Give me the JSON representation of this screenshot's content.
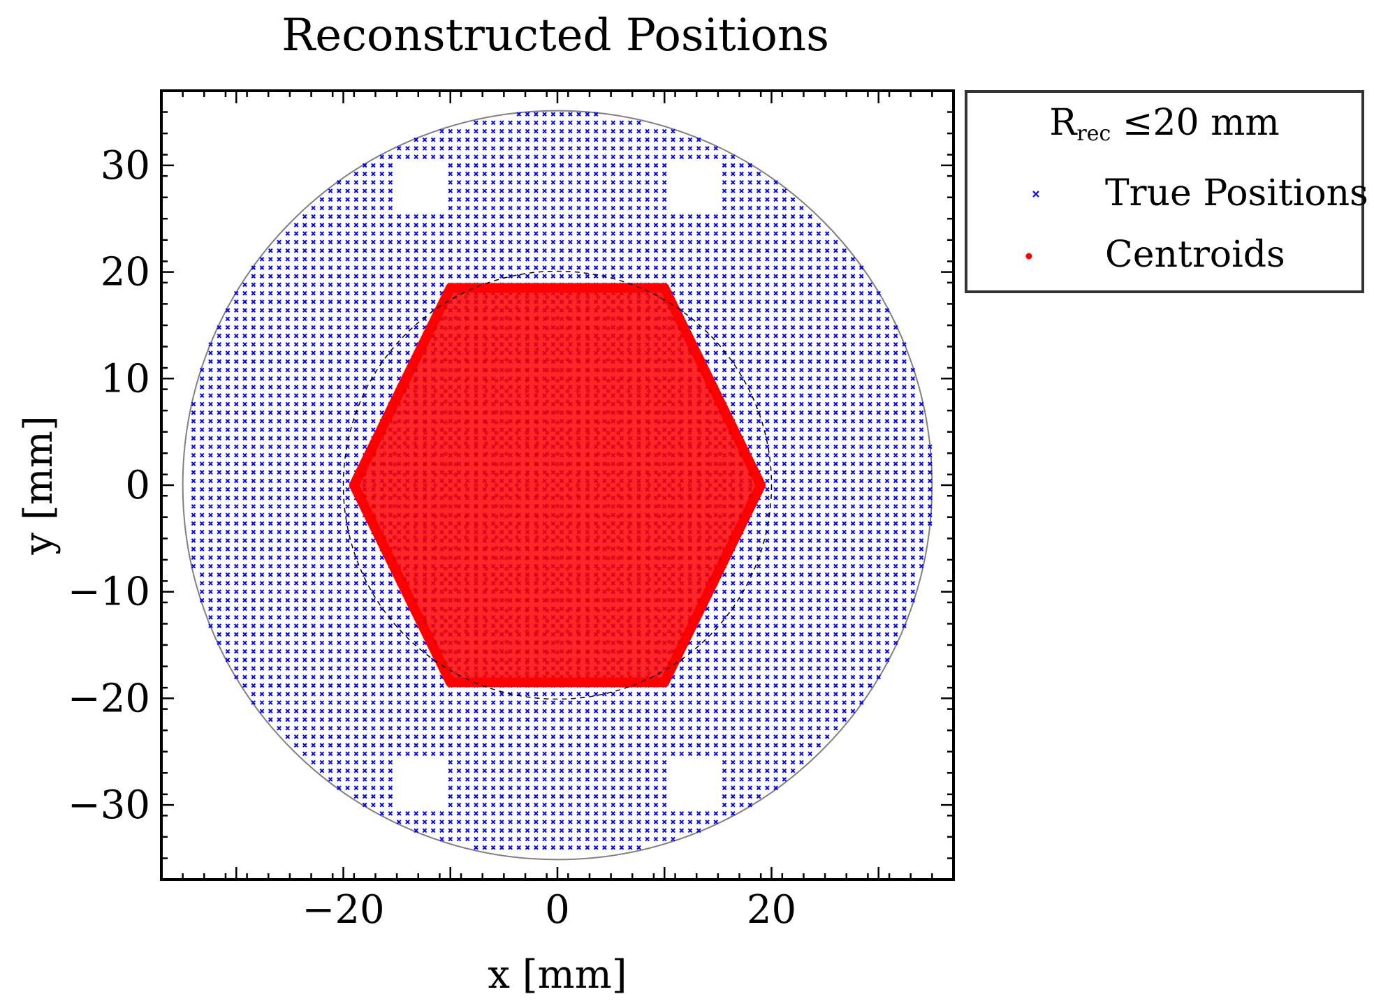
{
  "chart_data": {
    "type": "scatter",
    "title": "Reconstructed Positions",
    "xlabel": "x [mm]",
    "ylabel": "y [mm]",
    "xlim": [
      -37,
      37
    ],
    "ylim": [
      -37,
      37
    ],
    "xticks": [
      {
        "value": -20,
        "label": "−20"
      },
      {
        "value": 0,
        "label": "0"
      },
      {
        "value": 20,
        "label": "20"
      }
    ],
    "yticks": [
      {
        "value": 30,
        "label": "30"
      },
      {
        "value": 20,
        "label": "20"
      },
      {
        "value": 10,
        "label": "10"
      },
      {
        "value": 0,
        "label": "0"
      },
      {
        "value": -10,
        "label": "−10"
      },
      {
        "value": -20,
        "label": "−20"
      },
      {
        "value": -30,
        "label": "−30"
      }
    ],
    "grid": false,
    "legend": {
      "placement": "outside-top-right",
      "title_main": "R",
      "title_sub": "rec",
      "title_rest": " ≤20 mm",
      "entries": [
        {
          "label": "True Positions",
          "marker": "x",
          "color": "#0000ff"
        },
        {
          "label": "Centroids",
          "marker": "dot",
          "color": "#ff0000"
        }
      ]
    },
    "series": [
      {
        "name": "True Positions",
        "marker": "x",
        "color": "#0000ff",
        "grid_pitch": 0.8,
        "region": "disc",
        "radius": 35,
        "excluded_square_centers": [
          [
            -13,
            28
          ],
          [
            13,
            28
          ],
          [
            -13,
            -28
          ],
          [
            13,
            -28
          ]
        ],
        "excluded_half_width": 2.6
      },
      {
        "name": "Centroids",
        "marker": "dot",
        "color": "#ff0000",
        "region": "hexagon",
        "hexagon_vertices": [
          [
            -19,
            0
          ],
          [
            -10,
            18.5
          ],
          [
            10,
            18.5
          ],
          [
            19,
            0
          ],
          [
            10,
            -18.5
          ],
          [
            -10,
            -18.5
          ]
        ]
      }
    ],
    "reference_circles": [
      {
        "radius": 35,
        "style": "solid",
        "color": "#808080"
      },
      {
        "radius": 20,
        "style": "dashed",
        "color": "#000000"
      }
    ]
  }
}
